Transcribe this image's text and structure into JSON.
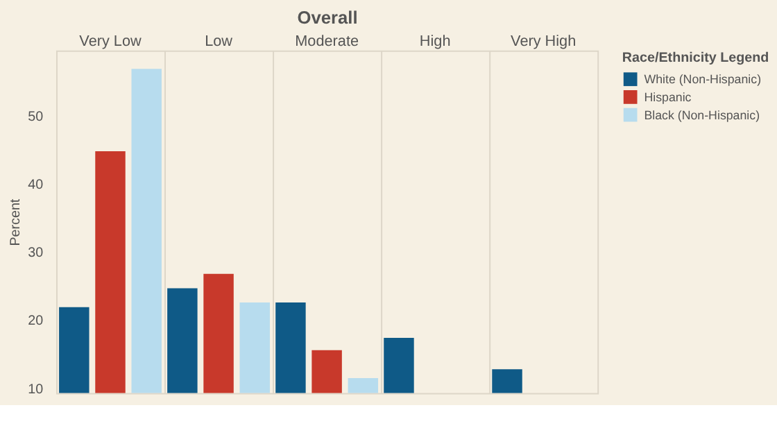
{
  "chart_data": {
    "type": "bar",
    "xlabel": "Overall",
    "ylabel": "Percent",
    "legend_title": "Race/Ethnicity Legend",
    "categories": [
      "Very Low",
      "Low",
      "Moderate",
      "High",
      "Very High"
    ],
    "series": [
      {
        "name": "White (Non-Hispanic)",
        "color": "#0f5a87",
        "values": [
          21.9,
          24.7,
          22.6,
          17.4,
          12.8
        ]
      },
      {
        "name": "Hispanic",
        "color": "#c8392b",
        "values": [
          44.8,
          26.8,
          15.6,
          null,
          null
        ]
      },
      {
        "name": "Black (Non-Hispanic)",
        "color": "#b7dcee",
        "values": [
          56.9,
          22.6,
          11.5,
          null,
          null
        ]
      }
    ],
    "ylim": [
      9.3,
      59.6
    ],
    "yticks": [
      10,
      20,
      30,
      40,
      50
    ],
    "grid": "x",
    "legend": "right"
  }
}
